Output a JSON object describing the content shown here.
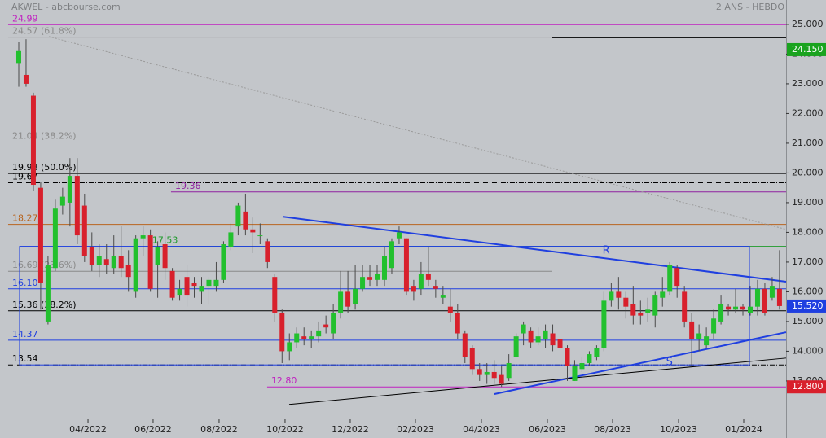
{
  "chart_data": {
    "type": "candlestick",
    "title": "AKWEL - abcbourse.com",
    "subtitle": "2 ANS - HEBDO",
    "up_color": "#22c02e",
    "down_color": "#d8202c",
    "xlim": [
      -2.56,
      104.9
    ],
    "ylim": [
      11.71,
      25.82
    ],
    "xticks": [
      {
        "value": 9.47,
        "label": "04/2022"
      },
      {
        "value": 18.37,
        "label": "06/2022"
      },
      {
        "value": 27.39,
        "label": "08/2022"
      },
      {
        "value": 36.41,
        "label": "10/2022"
      },
      {
        "value": 45.32,
        "label": "12/2022"
      },
      {
        "value": 54.23,
        "label": "02/2023"
      },
      {
        "value": 63.25,
        "label": "04/2023"
      },
      {
        "value": 72.27,
        "label": "06/2023"
      },
      {
        "value": 81.18,
        "label": "08/2023"
      },
      {
        "value": 90.2,
        "label": "10/2023"
      },
      {
        "value": 99.11,
        "label": "01/2024"
      }
    ],
    "yticks": [
      {
        "value": 13,
        "label": "13.000"
      },
      {
        "value": 14,
        "label": "14.000"
      },
      {
        "value": 15,
        "label": "15.000"
      },
      {
        "value": 16,
        "label": "16.000"
      },
      {
        "value": 17,
        "label": "17.000"
      },
      {
        "value": 18,
        "label": "18.000"
      },
      {
        "value": 19,
        "label": "19.000"
      },
      {
        "value": 20,
        "label": "20.000"
      },
      {
        "value": 21,
        "label": "21.000"
      },
      {
        "value": 22,
        "label": "22.000"
      },
      {
        "value": 23,
        "label": "23.000"
      },
      {
        "value": 24,
        "label": "24.000"
      },
      {
        "value": 25,
        "label": "25.000"
      }
    ],
    "candles": [
      [
        23.7,
        24.4,
        22.9,
        24.1
      ],
      [
        23.3,
        24.5,
        22.9,
        23.0
      ],
      [
        22.6,
        22.7,
        19.4,
        19.6
      ],
      [
        19.5,
        19.7,
        15.4,
        16.3
      ],
      [
        15.0,
        17.2,
        14.9,
        16.9
      ],
      [
        16.8,
        19.1,
        16.7,
        18.8
      ],
      [
        18.9,
        19.5,
        18.6,
        19.2
      ],
      [
        19.0,
        20.5,
        18.2,
        19.9
      ],
      [
        19.9,
        20.5,
        17.6,
        17.9
      ],
      [
        18.9,
        19.3,
        17.0,
        17.2
      ],
      [
        17.5,
        18.0,
        16.7,
        16.9
      ],
      [
        16.9,
        17.6,
        16.5,
        17.2
      ],
      [
        17.1,
        17.6,
        16.6,
        16.9
      ],
      [
        16.8,
        17.9,
        16.6,
        17.2
      ],
      [
        17.2,
        18.2,
        16.5,
        16.8
      ],
      [
        16.9,
        17.4,
        16.0,
        16.5
      ],
      [
        16.0,
        17.9,
        15.8,
        17.8
      ],
      [
        17.8,
        18.2,
        17.2,
        17.9
      ],
      [
        17.9,
        18.1,
        16.0,
        16.1
      ],
      [
        16.9,
        17.7,
        15.8,
        17.5
      ],
      [
        17.6,
        18.0,
        16.4,
        16.8
      ],
      [
        16.7,
        16.8,
        15.7,
        15.8
      ],
      [
        15.9,
        16.4,
        15.7,
        16.1
      ],
      [
        16.5,
        16.9,
        15.5,
        15.9
      ],
      [
        16.3,
        16.5,
        15.8,
        16.2
      ],
      [
        16.0,
        16.5,
        15.6,
        16.2
      ],
      [
        16.2,
        16.5,
        15.6,
        16.4
      ],
      [
        16.2,
        17.0,
        16.0,
        16.4
      ],
      [
        16.4,
        17.7,
        16.3,
        17.6
      ],
      [
        17.5,
        18.3,
        17.4,
        18.0
      ],
      [
        18.2,
        19.0,
        17.9,
        18.9
      ],
      [
        18.7,
        19.3,
        17.9,
        18.1
      ],
      [
        18.1,
        18.5,
        17.3,
        18.0
      ],
      [
        17.9,
        18.3,
        17.6,
        17.9
      ],
      [
        17.7,
        17.8,
        16.8,
        17.0
      ],
      [
        16.5,
        16.6,
        15.0,
        15.3
      ],
      [
        15.3,
        15.4,
        13.6,
        14.0
      ],
      [
        14.0,
        14.6,
        13.7,
        14.3
      ],
      [
        14.3,
        14.8,
        14.1,
        14.6
      ],
      [
        14.5,
        14.8,
        14.2,
        14.4
      ],
      [
        14.4,
        14.7,
        14.1,
        14.5
      ],
      [
        14.5,
        15.0,
        14.3,
        14.7
      ],
      [
        14.9,
        15.2,
        14.6,
        14.8
      ],
      [
        14.6,
        15.6,
        14.4,
        15.3
      ],
      [
        15.3,
        16.7,
        15.1,
        16.0
      ],
      [
        16.0,
        16.7,
        15.3,
        15.5
      ],
      [
        15.6,
        16.9,
        15.4,
        16.1
      ],
      [
        16.1,
        16.9,
        16.0,
        16.5
      ],
      [
        16.5,
        16.9,
        16.2,
        16.4
      ],
      [
        16.4,
        16.9,
        16.2,
        16.6
      ],
      [
        16.4,
        17.5,
        16.2,
        17.2
      ],
      [
        16.8,
        17.8,
        16.6,
        17.7
      ],
      [
        17.8,
        18.2,
        17.6,
        18.0
      ],
      [
        17.8,
        17.8,
        15.9,
        16.0
      ],
      [
        16.2,
        16.4,
        15.7,
        16.0
      ],
      [
        16.1,
        17.0,
        15.9,
        16.6
      ],
      [
        16.6,
        17.5,
        16.2,
        16.4
      ],
      [
        16.2,
        16.4,
        15.8,
        16.1
      ],
      [
        15.8,
        16.2,
        15.6,
        15.9
      ],
      [
        15.5,
        16.1,
        15.0,
        15.3
      ],
      [
        15.3,
        15.6,
        14.4,
        14.6
      ],
      [
        14.6,
        14.7,
        13.6,
        13.8
      ],
      [
        14.1,
        14.2,
        13.2,
        13.4
      ],
      [
        13.4,
        13.6,
        13.0,
        13.2
      ],
      [
        13.2,
        13.6,
        12.9,
        13.3
      ],
      [
        13.3,
        13.7,
        12.9,
        13.1
      ],
      [
        13.2,
        13.5,
        12.8,
        12.9
      ],
      [
        13.1,
        13.9,
        13.0,
        13.6
      ],
      [
        13.8,
        14.6,
        13.8,
        14.5
      ],
      [
        14.6,
        15.0,
        14.2,
        14.9
      ],
      [
        14.7,
        14.8,
        14.1,
        14.3
      ],
      [
        14.3,
        14.8,
        14.2,
        14.5
      ],
      [
        14.4,
        14.9,
        14.1,
        14.7
      ],
      [
        14.6,
        14.9,
        14.0,
        14.2
      ],
      [
        14.4,
        14.6,
        13.8,
        14.1
      ],
      [
        14.1,
        14.2,
        13.0,
        13.5
      ],
      [
        13.0,
        13.7,
        13.0,
        13.5
      ],
      [
        13.4,
        13.8,
        13.3,
        13.6
      ],
      [
        13.6,
        14.0,
        13.5,
        13.9
      ],
      [
        13.8,
        14.2,
        13.7,
        14.1
      ],
      [
        14.1,
        16.0,
        14.0,
        15.7
      ],
      [
        15.7,
        16.3,
        15.5,
        16.0
      ],
      [
        16.0,
        16.5,
        15.4,
        15.8
      ],
      [
        15.8,
        16.0,
        15.1,
        15.5
      ],
      [
        15.6,
        16.2,
        14.9,
        15.2
      ],
      [
        15.3,
        15.7,
        14.9,
        15.2
      ],
      [
        15.3,
        15.8,
        15.0,
        15.4
      ],
      [
        15.2,
        16.0,
        14.8,
        15.9
      ],
      [
        15.8,
        16.5,
        15.5,
        16.0
      ],
      [
        16.0,
        17.0,
        15.9,
        16.9
      ],
      [
        16.8,
        16.9,
        15.8,
        16.2
      ],
      [
        16.0,
        16.2,
        14.8,
        15.0
      ],
      [
        15.0,
        15.3,
        13.5,
        14.4
      ],
      [
        14.4,
        14.9,
        14.0,
        14.6
      ],
      [
        14.2,
        14.8,
        14.1,
        14.5
      ],
      [
        14.6,
        15.4,
        14.4,
        15.1
      ],
      [
        15.0,
        15.9,
        14.9,
        15.6
      ],
      [
        15.5,
        15.6,
        15.2,
        15.4
      ],
      [
        15.4,
        16.1,
        15.3,
        15.5
      ],
      [
        15.5,
        15.6,
        15.2,
        15.4
      ],
      [
        15.3,
        16.2,
        15.2,
        15.5
      ],
      [
        15.5,
        16.4,
        15.2,
        16.1
      ],
      [
        16.1,
        16.3,
        15.2,
        15.3
      ],
      [
        15.8,
        16.5,
        15.7,
        16.2
      ],
      [
        16.1,
        17.4,
        15.4,
        15.52
      ]
    ],
    "levels": [
      {
        "label": "24.99",
        "value": 24.99,
        "color": "#c020c0",
        "x": [
          -1.45,
          104.9
        ]
      },
      {
        "label": "24.57  (61.8%)",
        "value": 24.57,
        "color": "#8a8a8a",
        "x": [
          -1.45,
          72.94
        ]
      },
      {
        "value": 24.55,
        "color": "#000000",
        "x": [
          72.94,
          104.9
        ]
      },
      {
        "label": "21.04  (38.2%)",
        "value": 21.04,
        "color": "#8a8a8a",
        "x": [
          -1.45,
          72.94
        ]
      },
      {
        "label": "19.98  (50.0%)",
        "value": 19.98,
        "color": "#000000",
        "x": [
          -1.45,
          104.9
        ]
      },
      {
        "label": "19.67",
        "value": 19.67,
        "color": "#000000",
        "x": [
          -1.45,
          104.9
        ],
        "style": "dash-dot"
      },
      {
        "label": "19.36",
        "value": 19.36,
        "color": "#9020a0",
        "x": [
          20.82,
          104.9
        ]
      },
      {
        "label": "18.27",
        "value": 18.27,
        "color": "#b8641e",
        "x": [
          -1.45,
          104.9
        ]
      },
      {
        "label": "17.53",
        "value": 17.53,
        "color": "#1e9a2a",
        "x": [
          17.7,
          104.9
        ]
      },
      {
        "label": "16.69  (23.6%)",
        "value": 16.69,
        "color": "#8a8a8a",
        "x": [
          -1.45,
          72.94
        ]
      },
      {
        "label": "16.10",
        "value": 16.1,
        "color": "#1f3fe0",
        "x": [
          -1.45,
          104.9
        ]
      },
      {
        "label": "15.36  (38.2%)",
        "value": 15.36,
        "color": "#000000",
        "x": [
          -1.45,
          104.9
        ]
      },
      {
        "label": "14.37",
        "value": 14.37,
        "color": "#1f3fe0",
        "x": [
          -1.45,
          104.9
        ]
      },
      {
        "label": "13.54",
        "value": 13.54,
        "color": "#000000",
        "x": [
          -1.45,
          104.9
        ],
        "style": "dash-dot"
      },
      {
        "label": "12.80",
        "value": 12.8,
        "color": "#c020c0",
        "x": [
          33.96,
          104.9
        ]
      }
    ],
    "box": {
      "x": [
        0.11,
        99.89
      ],
      "y": [
        13.54,
        17.53
      ],
      "color": "#1f3fe0"
    },
    "trendlines": [
      {
        "label": "R",
        "color": "#1f3fe0",
        "points": [
          [
            36.08,
            18.53
          ],
          [
            104.9,
            16.34
          ]
        ]
      },
      {
        "label": "S",
        "color": "#1f3fe0",
        "points": [
          [
            65.03,
            12.56
          ],
          [
            104.9,
            14.64
          ]
        ]
      },
      {
        "color": "#000000",
        "points": [
          [
            36.97,
            12.21
          ],
          [
            104.9,
            13.77
          ]
        ]
      },
      {
        "color": "#9a9a9a",
        "points": [
          [
            4.12,
            24.59
          ],
          [
            104.9,
            18.1
          ]
        ],
        "style": "dotted"
      }
    ],
    "price_tags": [
      {
        "value": 24.15,
        "label": "24.150",
        "color": "#1aa31f"
      },
      {
        "value": 15.52,
        "label": "15.520",
        "color": "#1f3fe0"
      },
      {
        "value": 12.8,
        "label": "12.800",
        "color": "#d8202c"
      }
    ]
  }
}
